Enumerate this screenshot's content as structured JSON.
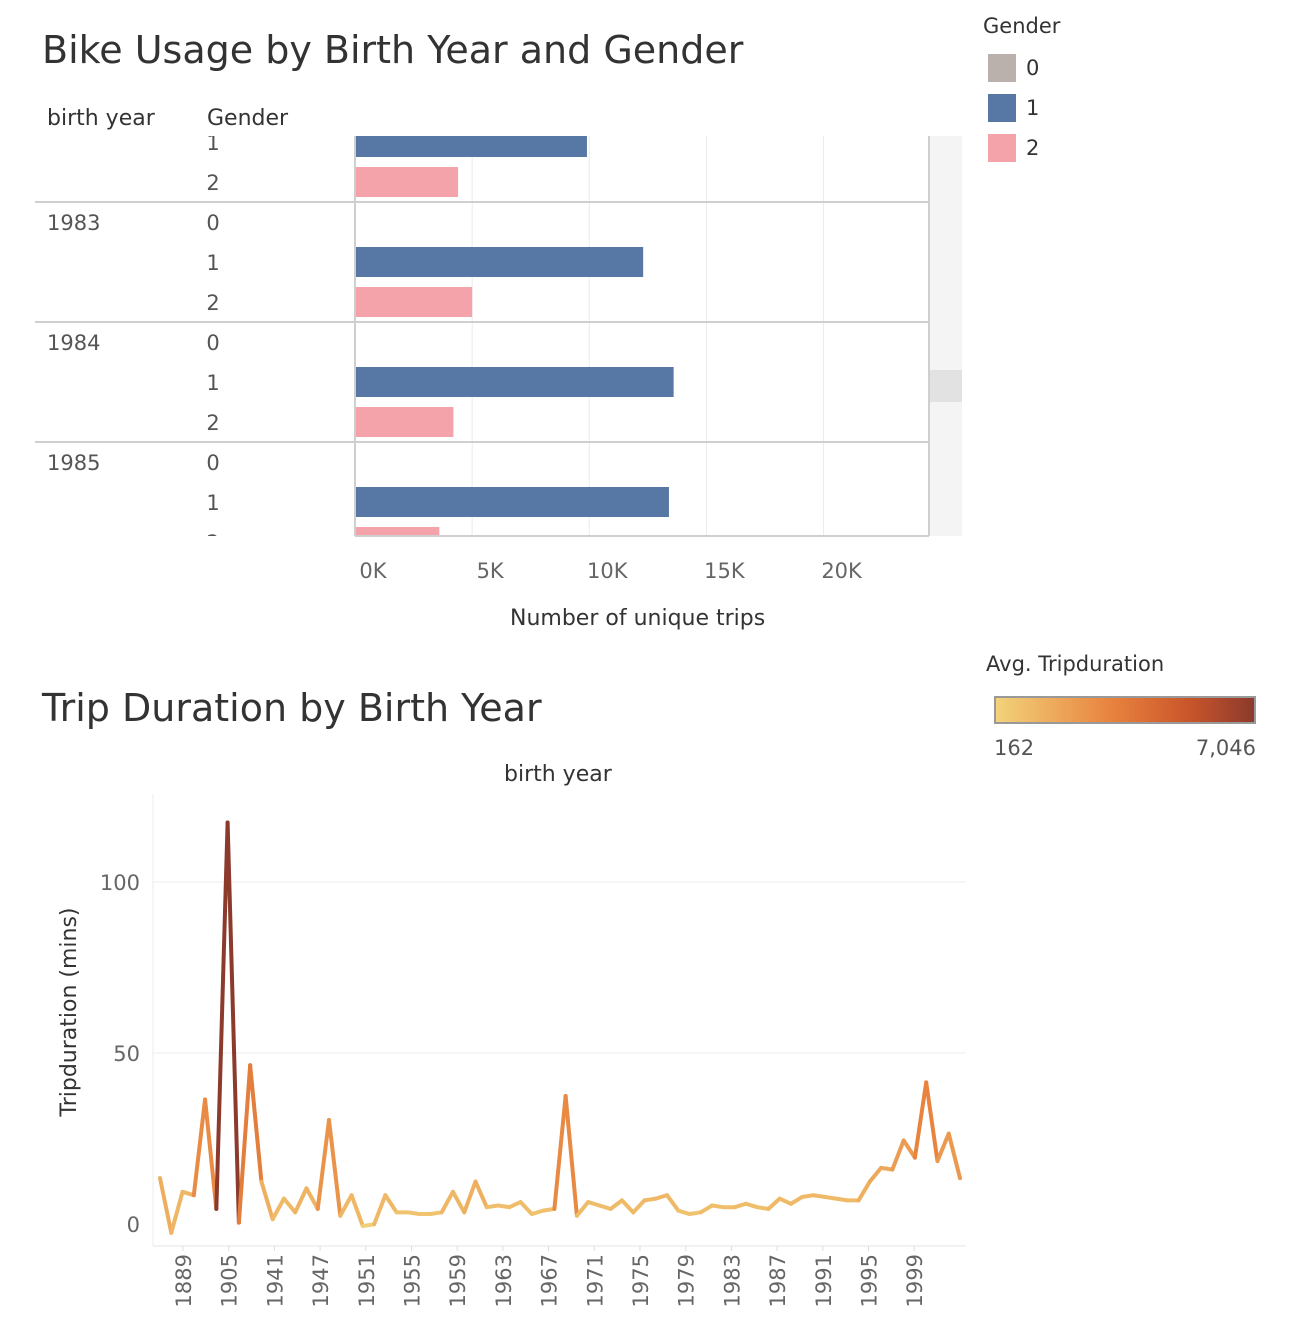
{
  "chart_data": [
    {
      "type": "bar",
      "title": "Bike Usage by Birth Year and Gender",
      "row_headers": [
        "birth year",
        "Gender"
      ],
      "xlabel": "Number of unique trips",
      "x_ticks": [
        "0K",
        "5K",
        "10K",
        "15K",
        "20K"
      ],
      "xlim": [
        0,
        24500
      ],
      "rows": [
        {
          "birth_year": "",
          "gender": "1",
          "value": 9900
        },
        {
          "birth_year": "",
          "gender": "2",
          "value": 4400
        },
        {
          "birth_year": "1983",
          "gender": "0",
          "value": 0
        },
        {
          "birth_year": "",
          "gender": "1",
          "value": 12300
        },
        {
          "birth_year": "",
          "gender": "2",
          "value": 5000
        },
        {
          "birth_year": "1984",
          "gender": "0",
          "value": 0
        },
        {
          "birth_year": "",
          "gender": "1",
          "value": 13600
        },
        {
          "birth_year": "",
          "gender": "2",
          "value": 4200
        },
        {
          "birth_year": "1985",
          "gender": "0",
          "value": 0
        },
        {
          "birth_year": "",
          "gender": "1",
          "value": 13400
        },
        {
          "birth_year": "",
          "gender": "2",
          "value": 3600
        }
      ],
      "legend": {
        "title": "Gender",
        "items": [
          {
            "label": "0",
            "color": "#bab0ac"
          },
          {
            "label": "1",
            "color": "#5778a4"
          },
          {
            "label": "2",
            "color": "#f4a3aa"
          }
        ]
      }
    },
    {
      "type": "line",
      "title": "Trip Duration by Birth Year",
      "xlabel": "birth year",
      "ylabel": "Tripduration (mins)",
      "ylim": [
        0,
        120
      ],
      "y_ticks": [
        0,
        50,
        100
      ],
      "x_tick_labels": [
        "1889",
        "1905",
        "1941",
        "1947",
        "1951",
        "1955",
        "1959",
        "1963",
        "1967",
        "1971",
        "1975",
        "1979",
        "1983",
        "1987",
        "1991",
        "1995",
        "1999"
      ],
      "values": [
        14,
        -2,
        10,
        9,
        37,
        5,
        118,
        1,
        47,
        13,
        2,
        8,
        4,
        11,
        5,
        31,
        3,
        9,
        0,
        0.5,
        9,
        4,
        4,
        3.5,
        3.5,
        4,
        10,
        4,
        13,
        5.5,
        6,
        5.5,
        7,
        3.5,
        4.5,
        5,
        38,
        3,
        7,
        6,
        5,
        7.5,
        4,
        7.5,
        8,
        9,
        4.5,
        3.5,
        4,
        6,
        5.5,
        5.5,
        6.5,
        5.5,
        5,
        8,
        6.5,
        8.5,
        9,
        8.5,
        8,
        7.5,
        7.5,
        13,
        17,
        16.5,
        25,
        20,
        42,
        19,
        27,
        14
      ],
      "legend": {
        "title": "Avg. Tripduration",
        "min_label": "162",
        "max_label": "7,046",
        "colors": [
          "#f2d27a",
          "#e8823e",
          "#8b3a2c"
        ]
      }
    }
  ]
}
